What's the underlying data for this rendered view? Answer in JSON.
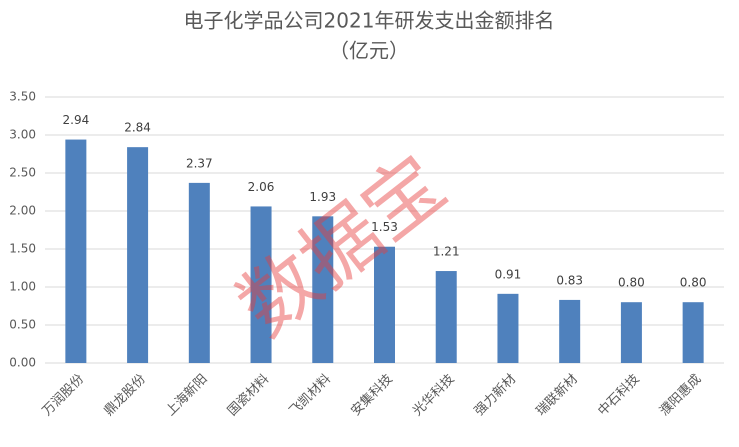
{
  "chart_data": {
    "type": "bar",
    "title": "电子化学品公司2021年研发支出金额排名",
    "subtitle": "（亿元）",
    "watermark": "数据宝",
    "categories": [
      "万润股份",
      "鼎龙股份",
      "上海新阳",
      "国瓷材料",
      "飞凯材料",
      "安集科技",
      "光华科技",
      "强力新材",
      "瑞联新材",
      "中石科技",
      "濮阳惠成"
    ],
    "values": [
      2.94,
      2.84,
      2.37,
      2.06,
      1.93,
      1.53,
      1.21,
      0.91,
      0.83,
      0.8,
      0.8
    ],
    "value_labels": [
      "2.94",
      "2.84",
      "2.37",
      "2.06",
      "1.93",
      "1.53",
      "1.21",
      "0.91",
      "0.83",
      "0.80",
      "0.80"
    ],
    "color": "#4f81bd",
    "ylim": [
      0,
      3.5
    ],
    "yticks": [
      {
        "value": 0,
        "label": "0.00"
      },
      {
        "value": 0.5,
        "label": "0.50"
      },
      {
        "value": 1,
        "label": "1.00"
      },
      {
        "value": 1.5,
        "label": "1.50"
      },
      {
        "value": 2,
        "label": "2.00"
      },
      {
        "value": 2.5,
        "label": "2.50"
      },
      {
        "value": 3,
        "label": "3.00"
      },
      {
        "value": 3.5,
        "label": "3.50"
      }
    ],
    "grid": true
  }
}
